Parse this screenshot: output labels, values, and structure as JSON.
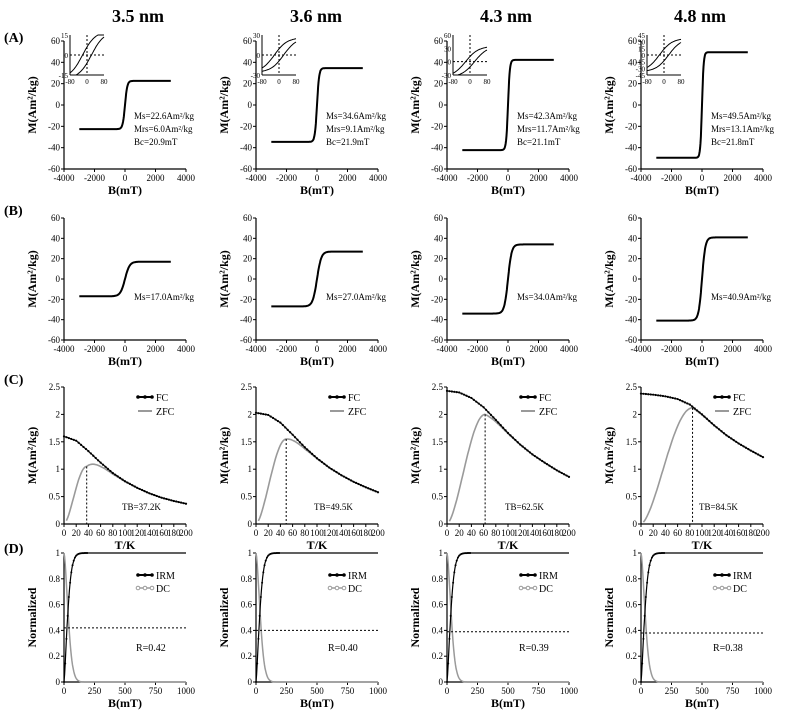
{
  "columns": [
    "3.5 nm",
    "3.6 nm",
    "4.3 nm",
    "4.8 nm"
  ],
  "row_labels": [
    "(A)",
    "(B)",
    "(C)",
    "(D)"
  ],
  "chart_data": [
    {
      "row": "A",
      "type": "line",
      "title": "Hysteresis loops (with low-field insets)",
      "xlabel": "B(mT)",
      "ylabel": "M(Am²/kg)",
      "xlim": [
        -4000,
        4000
      ],
      "ylim": [
        -60,
        60
      ],
      "xticks": [
        "-4000",
        "-2000",
        "0",
        "2000",
        "4000"
      ],
      "yticks": [
        "-60",
        "-40",
        "-20",
        "0",
        "20",
        "40",
        "60"
      ],
      "panels": [
        {
          "size": "3.5 nm",
          "ms": 22.6,
          "mrs": 6.0,
          "bc": 20.9,
          "width": 150,
          "annotations": [
            "Ms=22.6Am²/kg",
            "Mrs=6.0Am²/kg",
            "Bc=20.9mT"
          ],
          "inset": {
            "yticks": [
              "15",
              "0",
              "-15"
            ],
            "xticks": [
              "-80",
              "0",
              "80"
            ],
            "ylim": [
              -15,
              15
            ],
            "xlim": [
              -80,
              80
            ]
          }
        },
        {
          "size": "3.6 nm",
          "ms": 34.6,
          "mrs": 9.1,
          "bc": 21.9,
          "width": 140,
          "annotations": [
            "Ms=34.6Am²/kg",
            "Mrs=9.1Am²/kg",
            "Bc=21.9mT"
          ],
          "inset": {
            "yticks": [
              "30",
              "0",
              "-30"
            ],
            "xticks": [
              "-80",
              "0",
              "80"
            ],
            "ylim": [
              -30,
              30
            ],
            "xlim": [
              -80,
              80
            ]
          }
        },
        {
          "size": "4.3 nm",
          "ms": 42.3,
          "mrs": 11.7,
          "bc": 21.1,
          "width": 120,
          "annotations": [
            "Ms=42.3Am²/kg",
            "Mrs=11.7Am²/kg",
            "Bc=21.1mT"
          ],
          "inset": {
            "yticks": [
              "60",
              "30",
              "0",
              "-30"
            ],
            "xticks": [
              "-80",
              "0",
              "80"
            ],
            "ylim": [
              -30,
              60
            ],
            "xlim": [
              -80,
              80
            ]
          }
        },
        {
          "size": "4.8 nm",
          "ms": 49.5,
          "mrs": 13.1,
          "bc": 21.8,
          "width": 110,
          "annotations": [
            "Ms=49.5Am²/kg",
            "Mrs=13.1Am²/kg",
            "Bc=21.8mT"
          ],
          "inset": {
            "yticks": [
              "45",
              "30",
              "15",
              "0",
              "-15",
              "-30",
              "-45"
            ],
            "xticks": [
              "-80",
              "0",
              "80"
            ],
            "ylim": [
              -45,
              45
            ],
            "xlim": [
              -80,
              80
            ]
          }
        }
      ]
    },
    {
      "row": "B",
      "type": "line",
      "title": "Magnetization curves",
      "xlabel": "B(mT)",
      "ylabel": "M(Am²/kg)",
      "xlim": [
        -4000,
        4000
      ],
      "ylim": [
        -60,
        60
      ],
      "xticks": [
        "-4000",
        "-2000",
        "0",
        "2000",
        "4000"
      ],
      "yticks": [
        "-60",
        "-40",
        "-20",
        "0",
        "20",
        "40",
        "60"
      ],
      "panels": [
        {
          "size": "3.5 nm",
          "ms": 17.0,
          "width": 300,
          "annotations": [
            "Ms=17.0Am²/kg"
          ]
        },
        {
          "size": "3.6 nm",
          "ms": 27.0,
          "width": 280,
          "annotations": [
            "Ms=27.0Am²/kg"
          ]
        },
        {
          "size": "4.3 nm",
          "ms": 34.0,
          "width": 240,
          "annotations": [
            "Ms=34.0Am²/kg"
          ]
        },
        {
          "size": "4.8 nm",
          "ms": 40.9,
          "width": 220,
          "annotations": [
            "Ms=40.9Am²/kg"
          ]
        }
      ]
    },
    {
      "row": "C",
      "type": "line",
      "title": "FC / ZFC curves",
      "xlabel": "T/K",
      "ylabel": "M(Am²/kg)",
      "xlim": [
        0,
        200
      ],
      "ylim": [
        0,
        2.5
      ],
      "xticks": [
        "0",
        "20",
        "40",
        "60",
        "80",
        "100",
        "120",
        "140",
        "160",
        "180",
        "200"
      ],
      "yticks": [
        "0",
        "0.5",
        "1",
        "1.5",
        "2",
        "2.5"
      ],
      "legend": [
        "FC",
        "ZFC"
      ],
      "legend_position": "top-right",
      "panels": [
        {
          "size": "3.5 nm",
          "tb": 37.2,
          "fc0": 1.6,
          "zfc_peak": 1.05,
          "annotation": "TB=37.2K",
          "fc_x": [
            0,
            20,
            40,
            60,
            80,
            100,
            120,
            140,
            160,
            180,
            200
          ],
          "fc_y": [
            1.6,
            1.52,
            1.33,
            1.12,
            0.93,
            0.78,
            0.66,
            0.56,
            0.48,
            0.42,
            0.37
          ]
        },
        {
          "size": "3.6 nm",
          "tb": 49.5,
          "fc0": 2.03,
          "zfc_peak": 1.55,
          "annotation": "TB=49.5K",
          "fc_x": [
            0,
            20,
            40,
            60,
            80,
            100,
            120,
            140,
            160,
            180,
            200
          ],
          "fc_y": [
            2.03,
            1.99,
            1.85,
            1.63,
            1.4,
            1.2,
            1.03,
            0.89,
            0.77,
            0.67,
            0.58
          ]
        },
        {
          "size": "4.3 nm",
          "tb": 62.5,
          "fc0": 2.43,
          "zfc_peak": 2.0,
          "annotation": "TB=62.5K",
          "fc_x": [
            0,
            20,
            40,
            60,
            80,
            100,
            120,
            140,
            160,
            180,
            200
          ],
          "fc_y": [
            2.43,
            2.4,
            2.3,
            2.13,
            1.9,
            1.66,
            1.45,
            1.27,
            1.12,
            0.98,
            0.86
          ]
        },
        {
          "size": "4.8 nm",
          "tb": 84.5,
          "fc0": 2.38,
          "zfc_peak": 2.12,
          "annotation": "TB=84.5K",
          "fc_x": [
            0,
            20,
            40,
            60,
            80,
            100,
            120,
            140,
            160,
            180,
            200
          ],
          "fc_y": [
            2.38,
            2.36,
            2.33,
            2.28,
            2.18,
            2.0,
            1.8,
            1.62,
            1.47,
            1.34,
            1.22
          ]
        }
      ]
    },
    {
      "row": "D",
      "type": "line",
      "title": "Normalized IRM / DC demagnetization",
      "xlabel": "B(mT)",
      "ylabel": "Normalized",
      "xlim": [
        0,
        1000
      ],
      "ylim": [
        0,
        1
      ],
      "xticks": [
        "0",
        "250",
        "500",
        "750",
        "1000"
      ],
      "yticks": [
        "0",
        "0.2",
        "0.4",
        "0.6",
        "0.8",
        "1"
      ],
      "legend": [
        "IRM",
        "DC"
      ],
      "legend_position": "top-right",
      "panels": [
        {
          "size": "3.5 nm",
          "r": 0.42,
          "annotation": "R=0.42"
        },
        {
          "size": "3.6 nm",
          "r": 0.4,
          "annotation": "R=0.40"
        },
        {
          "size": "4.3 nm",
          "r": 0.39,
          "annotation": "R=0.39"
        },
        {
          "size": "4.8 nm",
          "r": 0.38,
          "annotation": "R=0.38"
        }
      ]
    }
  ]
}
